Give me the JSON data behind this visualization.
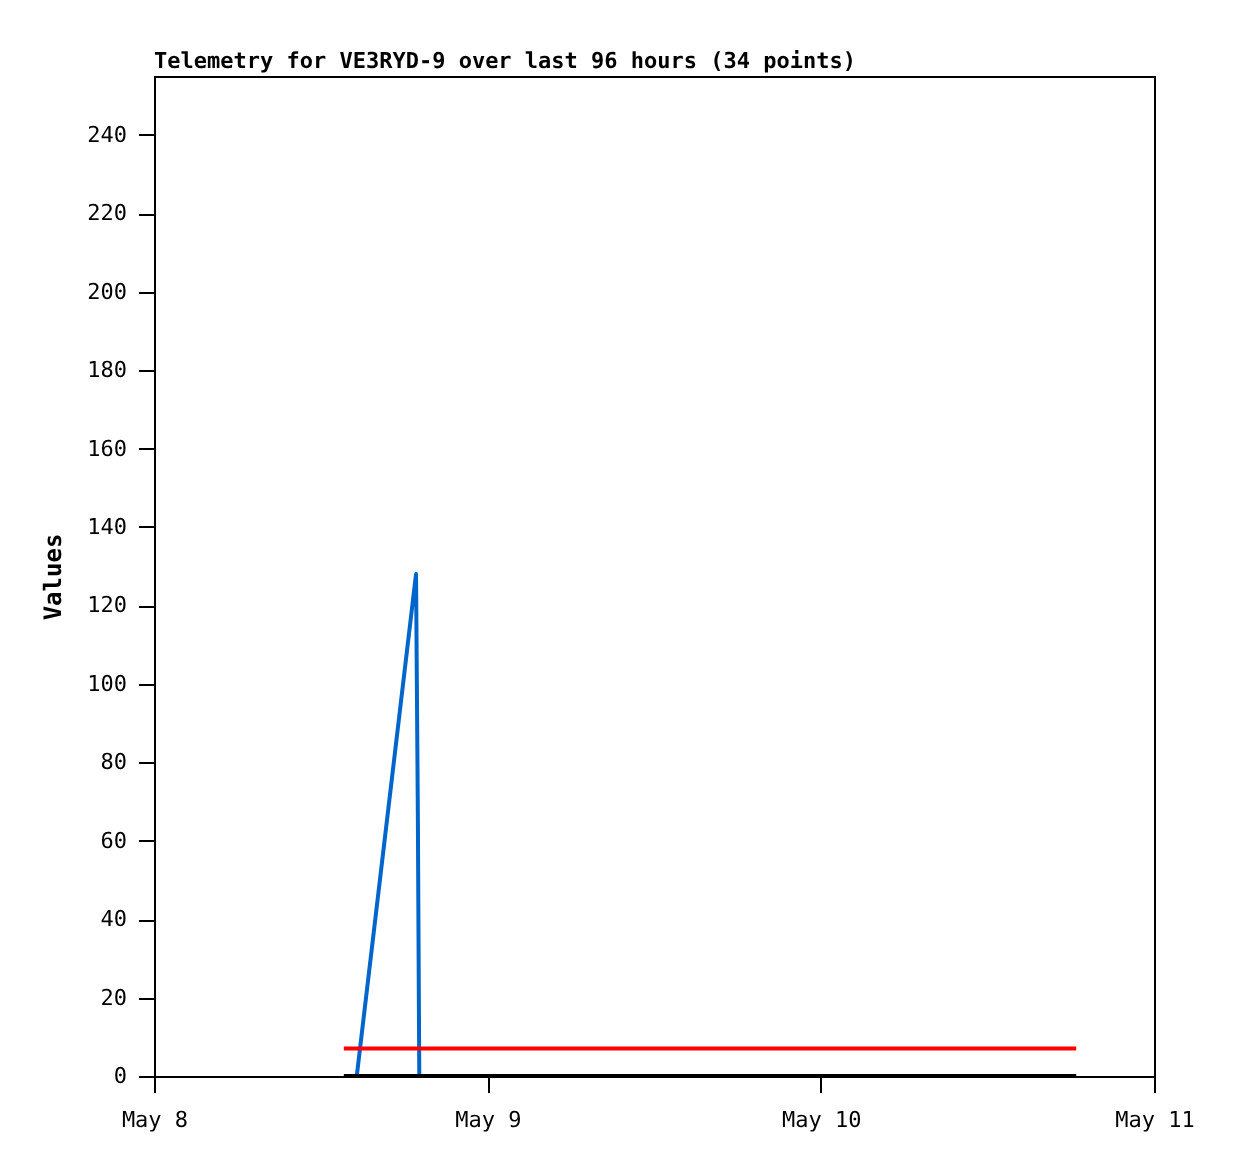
{
  "chart_data": {
    "type": "line",
    "title": "Telemetry for VE3RYD-9 over last 96 hours (34 points)",
    "ylabel": "Values",
    "series": [
      {
        "color": "#0066cc",
        "x": [
          "--05-08T14:36",
          "--05-08T18:52",
          "--05-08T19:00",
          "--05-08T19:06"
        ],
        "values": [
          0,
          128,
          65,
          0
        ]
      },
      {
        "color": "#ff0000",
        "x": [
          "--05-08T13:40",
          "--05-10T18:24"
        ],
        "values": [
          7,
          7
        ]
      },
      {
        "color": "#000000",
        "x": [
          "--05-08T13:40",
          "--05-10T18:24"
        ],
        "values": [
          0,
          0
        ]
      }
    ],
    "xlim": [
      "--05-08",
      "--05-11"
    ],
    "xticks": [
      {
        "value": "--05-08",
        "label": "May 8"
      },
      {
        "value": "--05-09",
        "label": "May 9"
      },
      {
        "value": "--05-10",
        "label": "May 10"
      },
      {
        "value": "--05-11",
        "label": "May 11"
      }
    ],
    "ylim": [
      0,
      255
    ],
    "yticks": [
      0,
      20,
      40,
      60,
      80,
      100,
      120,
      140,
      160,
      180,
      200,
      220,
      240
    ],
    "grid": false,
    "legend": false,
    "marker": "none",
    "line_style": "solid"
  }
}
